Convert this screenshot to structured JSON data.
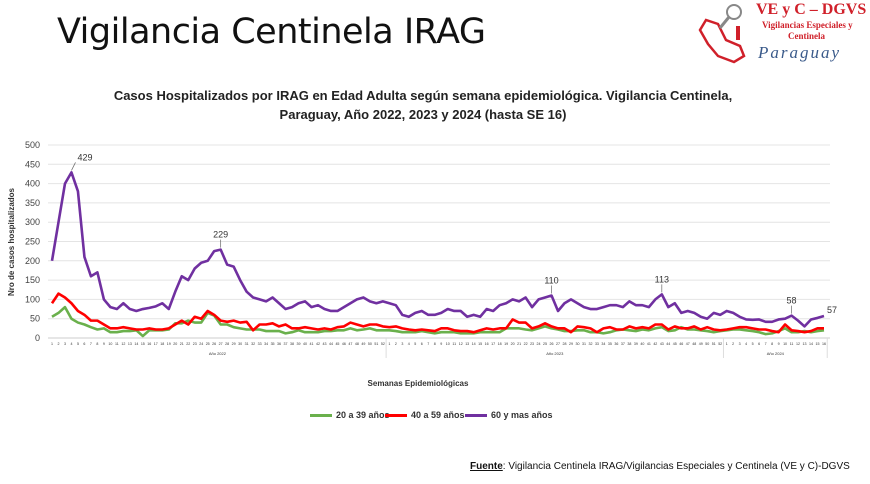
{
  "header": {
    "title": "Vigilancia Centinela IRAG",
    "logo": {
      "line1": "VE y C – DGVS",
      "line2": "Vigilancias Especiales y",
      "line3": "Centinela",
      "line4": "Paraguay"
    }
  },
  "chart_data": {
    "type": "line",
    "title_line1": "Casos Hospitalizados por IRAG en Edad Adulta según semana epidemiológica. Vigilancia Centinela,",
    "title_line2": "Paraguay, Año 2022, 2023 y 2024 (hasta SE 16)",
    "xlabel": "Semanas Epidemiológicas",
    "ylabel": "Nro de casos hospitalizados",
    "ylim": [
      0,
      500
    ],
    "yticks": [
      0,
      50,
      100,
      150,
      200,
      250,
      300,
      350,
      400,
      450,
      500
    ],
    "grid": true,
    "legend_position": "bottom",
    "year_groups": [
      {
        "label": "Año 2022",
        "weeks": 52
      },
      {
        "label": "Año 2023",
        "weeks": 52
      },
      {
        "label": "Año 2024",
        "weeks": 16
      }
    ],
    "annotations": [
      {
        "series": 2,
        "index": 3,
        "text": "429"
      },
      {
        "series": 2,
        "index": 26,
        "text": "229"
      },
      {
        "series": 2,
        "index": 77,
        "text": "110"
      },
      {
        "series": 2,
        "index": 94,
        "text": "113"
      },
      {
        "series": 2,
        "index": 114,
        "text": "58"
      },
      {
        "series": 2,
        "index": 119,
        "text": "57"
      }
    ],
    "series": [
      {
        "name": "20 a 39 años",
        "color": "#6ab04c",
        "values": [
          55,
          65,
          80,
          50,
          40,
          35,
          28,
          22,
          25,
          15,
          15,
          18,
          18,
          20,
          5,
          20,
          20,
          20,
          22,
          38,
          38,
          45,
          40,
          40,
          65,
          58,
          35,
          35,
          28,
          25,
          22,
          22,
          22,
          18,
          18,
          18,
          12,
          15,
          20,
          15,
          15,
          15,
          18,
          18,
          20,
          20,
          25,
          20,
          22,
          25,
          20,
          20,
          20,
          18,
          15,
          15,
          15,
          18,
          15,
          12,
          15,
          15,
          15,
          12,
          12,
          12,
          15,
          15,
          15,
          15,
          25,
          25,
          25,
          22,
          20,
          25,
          30,
          25,
          22,
          18,
          18,
          20,
          20,
          15,
          15,
          12,
          15,
          20,
          22,
          20,
          18,
          22,
          20,
          25,
          28,
          18,
          20,
          28,
          22,
          22,
          20,
          18,
          15,
          18,
          20,
          22,
          22,
          20,
          18,
          15,
          10,
          12,
          18,
          25,
          15,
          15,
          18,
          15,
          18,
          20
        ]
      },
      {
        "name": "40 a 59 años",
        "color": "#ff0000",
        "values": [
          90,
          115,
          105,
          90,
          70,
          60,
          45,
          45,
          35,
          25,
          25,
          28,
          25,
          22,
          22,
          25,
          22,
          22,
          25,
          35,
          45,
          35,
          55,
          50,
          70,
          60,
          45,
          42,
          45,
          40,
          42,
          20,
          35,
          35,
          38,
          30,
          35,
          25,
          25,
          28,
          25,
          22,
          25,
          22,
          28,
          30,
          40,
          35,
          30,
          35,
          35,
          30,
          28,
          30,
          25,
          22,
          20,
          22,
          20,
          18,
          25,
          25,
          20,
          18,
          18,
          15,
          20,
          25,
          22,
          25,
          25,
          48,
          40,
          40,
          25,
          30,
          38,
          30,
          25,
          25,
          15,
          30,
          28,
          25,
          15,
          25,
          28,
          22,
          22,
          30,
          25,
          28,
          25,
          35,
          35,
          22,
          30,
          25,
          25,
          30,
          22,
          28,
          22,
          20,
          22,
          25,
          28,
          28,
          25,
          22,
          22,
          18,
          15,
          35,
          20,
          18,
          15,
          18,
          25,
          25
        ]
      },
      {
        "name": "60 y mas años",
        "color": "#7030a0",
        "values": [
          200,
          300,
          400,
          429,
          380,
          210,
          160,
          170,
          100,
          80,
          75,
          90,
          75,
          70,
          75,
          78,
          82,
          90,
          75,
          120,
          160,
          150,
          180,
          195,
          200,
          225,
          229,
          190,
          185,
          150,
          120,
          105,
          100,
          95,
          105,
          90,
          75,
          80,
          90,
          95,
          80,
          85,
          75,
          70,
          70,
          80,
          90,
          100,
          105,
          95,
          90,
          95,
          90,
          85,
          60,
          55,
          65,
          70,
          60,
          60,
          65,
          75,
          70,
          70,
          55,
          60,
          55,
          75,
          70,
          85,
          90,
          100,
          95,
          105,
          80,
          100,
          105,
          110,
          70,
          90,
          100,
          90,
          80,
          75,
          75,
          80,
          85,
          85,
          80,
          95,
          85,
          85,
          80,
          100,
          113,
          80,
          90,
          65,
          70,
          65,
          55,
          50,
          65,
          60,
          70,
          65,
          55,
          48,
          47,
          48,
          42,
          42,
          48,
          50,
          58,
          45,
          30,
          48,
          52,
          57
        ]
      }
    ]
  },
  "footer": {
    "label": "Fuente",
    "text": ": Vigilancia  Centinela IRAG/Vigilancias Especiales y Centinela (VE y C)-DGVS"
  }
}
